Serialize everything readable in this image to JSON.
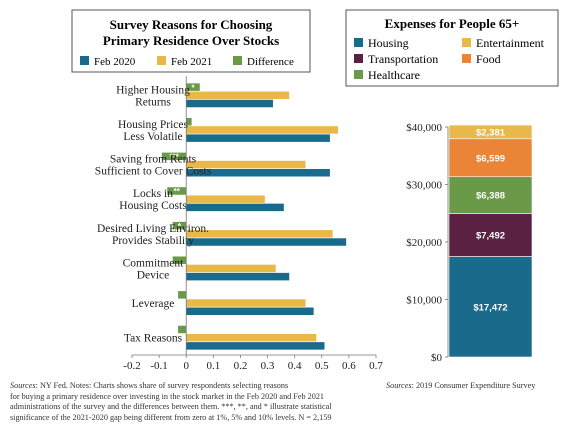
{
  "left_chart": {
    "title_line1": "Survey Reasons for Choosing",
    "title_line2": "Primary Residence Over Stocks",
    "legend": [
      {
        "label": "Feb 2020",
        "color": "#1a6a8c"
      },
      {
        "label": "Feb 2021",
        "color": "#e8b84a"
      },
      {
        "label": "Difference",
        "color": "#6a9a47"
      }
    ],
    "source_prefix": "Sources",
    "source_text": ": NY Fed. Notes: Charts shows share of survey respondents selecting reasons",
    "source_line2": "for buying a primary residence over investing in the stock market in the Feb 2020 and Feb 2021",
    "source_line3": "administrations of the survey and the differences between them. ***, **, and * illustrate statistical",
    "source_line4": "significance of the 2021-2020 gap being different from zero at 1%, 5% and 10% levels. N = 2,159"
  },
  "right_chart": {
    "title": "Expenses for People 65+",
    "legend": [
      {
        "label": "Housing",
        "color": "#1a6a8c"
      },
      {
        "label": "Entertainment",
        "color": "#e8b84a"
      },
      {
        "label": "Transportation",
        "color": "#5a2142"
      },
      {
        "label": "Food",
        "color": "#ea8436"
      },
      {
        "label": "Healthcare",
        "color": "#6a9a47"
      }
    ],
    "source_prefix": "Sources",
    "source_text": ": 2019 Consumer Expenditure Survey"
  },
  "chart_data": [
    {
      "type": "bar",
      "orientation": "horizontal",
      "title": "Survey Reasons for Choosing Primary Residence Over Stocks",
      "categories": [
        [
          "Higher Housing",
          "Returns"
        ],
        [
          "Housing Prices",
          "Less Volatile"
        ],
        [
          "Saving from Rents",
          "Sufficient to Cover Costs"
        ],
        [
          "Locks in",
          "Housing Costs"
        ],
        [
          "Desired Living Environ.",
          "Provides Stability"
        ],
        [
          "Commitment",
          "Device"
        ],
        [
          "Leverage",
          ""
        ],
        [
          "Tax Reasons",
          ""
        ]
      ],
      "series": [
        {
          "name": "Difference",
          "color": "#6a9a47",
          "values": [
            0.05,
            0.02,
            -0.09,
            -0.07,
            -0.05,
            -0.05,
            -0.03,
            -0.03
          ]
        },
        {
          "name": "Feb 2021",
          "color": "#e8b84a",
          "values": [
            0.38,
            0.56,
            0.44,
            0.29,
            0.54,
            0.33,
            0.44,
            0.48
          ]
        },
        {
          "name": "Feb 2020",
          "color": "#1a6a8c",
          "values": [
            0.32,
            0.53,
            0.53,
            0.36,
            0.59,
            0.38,
            0.47,
            0.51
          ]
        }
      ],
      "significance": [
        "*",
        "",
        "***",
        "**",
        "*",
        "",
        "",
        ""
      ],
      "xlim": [
        -0.2,
        0.7
      ],
      "xticks": [
        "-0.2",
        "-0.1",
        "0",
        "0.1",
        "0.2",
        "0.3",
        "0.4",
        "0.5",
        "0.6",
        "0.7"
      ]
    },
    {
      "type": "bar",
      "orientation": "vertical",
      "stacked": true,
      "title": "Expenses for People 65+",
      "segments": [
        {
          "name": "Housing",
          "value": 17472,
          "label": "$17,472",
          "color": "#1a6a8c"
        },
        {
          "name": "Transportation",
          "value": 7492,
          "label": "$7,492",
          "color": "#5a2142"
        },
        {
          "name": "Healthcare",
          "value": 6388,
          "label": "$6,388",
          "color": "#6a9a47"
        },
        {
          "name": "Food",
          "value": 6599,
          "label": "$6,599",
          "color": "#ea8436"
        },
        {
          "name": "Entertainment",
          "value": 2381,
          "label": "$2,381",
          "color": "#e8b84a"
        }
      ],
      "ylim": [
        0,
        40000
      ],
      "yticks": [
        "$0",
        "$10,000",
        "$20,000",
        "$30,000",
        "$40,000"
      ]
    }
  ]
}
